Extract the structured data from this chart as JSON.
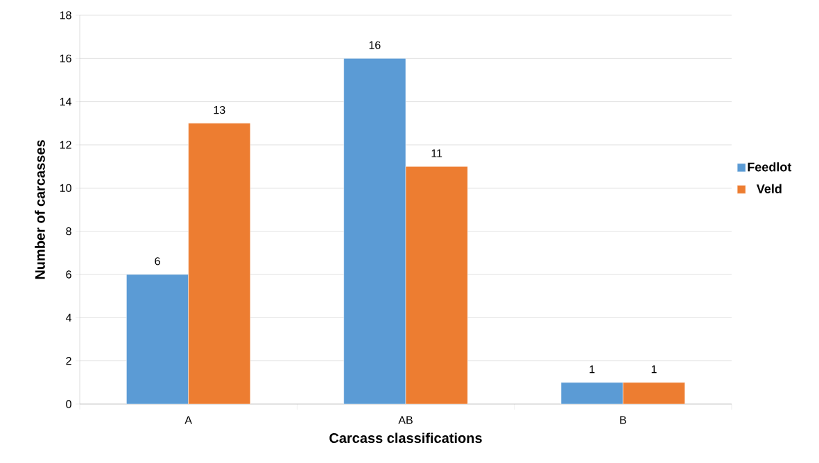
{
  "chart_data": {
    "type": "bar",
    "xlabel": "Carcass classifications",
    "ylabel": "Number of carcasses",
    "categories": [
      "A",
      "AB",
      "B"
    ],
    "series": [
      {
        "name": "Feedlot",
        "color": "#5b9bd5",
        "values": [
          6,
          16,
          1
        ]
      },
      {
        "name": "Veld",
        "color": "#ed7d31",
        "values": [
          13,
          11,
          1
        ]
      }
    ],
    "ylim": [
      0,
      18
    ],
    "yticks": [
      0,
      2,
      4,
      6,
      8,
      10,
      12,
      14,
      16,
      18
    ],
    "grid": "y",
    "legend": "right",
    "data_labels": true
  }
}
